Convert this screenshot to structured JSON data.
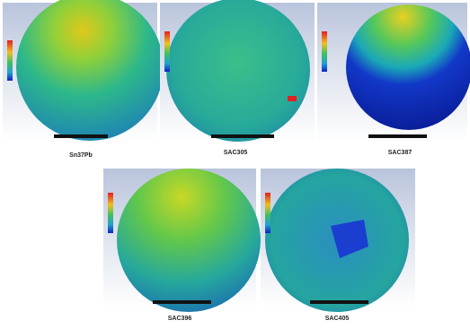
{
  "panels": [
    {
      "label": "Sn37Pb"
    },
    {
      "label": "SAC305"
    },
    {
      "label": "SAC387"
    },
    {
      "label": "SAC396"
    },
    {
      "label": "SAC405"
    }
  ]
}
